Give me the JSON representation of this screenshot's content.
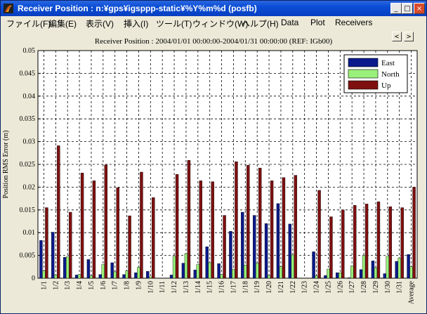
{
  "window": {
    "title": "Receiver Position : n:¥gps¥igsppp-static¥%Y%m%d (posfb)",
    "buttons": {
      "minimize": "_",
      "maximize": "□",
      "close": "×"
    }
  },
  "menu": {
    "items": [
      "ファイル(F)",
      "編集(E)",
      "表示(V)",
      "挿入(I)",
      "ツール(T)",
      "ウィンドウ(W)",
      "ヘルプ(H)",
      "Data",
      "Plot",
      "Receivers"
    ]
  },
  "nav": {
    "prev": "<",
    "next": ">"
  },
  "colors": {
    "east": "#0a1a8c",
    "north": "#99f07a",
    "up": "#7f1010"
  },
  "chart_data": {
    "type": "bar",
    "title": "Receiver Position : 2004/01/01 00:00:00-2004/01/31 00:00:00 (REF: IGb00)",
    "xlabel": "",
    "ylabel": "Position RMS Error (m)",
    "ylim": [
      0,
      0.05
    ],
    "yticks": [
      "0",
      "0.005",
      "0.01",
      "0.015",
      "0.02",
      "0.025",
      "0.03",
      "0.035",
      "0.04",
      "0.045",
      "0.05"
    ],
    "grid": true,
    "legend_position": "top-right",
    "categories": [
      "1/1",
      "1/2",
      "1/3",
      "1/4",
      "1/5",
      "1/6",
      "1/7",
      "1/8",
      "1/9",
      "1/10",
      "1/11",
      "1/12",
      "1/13",
      "1/14",
      "1/15",
      "1/16",
      "1/17",
      "1/18",
      "1/19",
      "1/20",
      "1/21",
      "1/22",
      "1/23",
      "1/24",
      "1/25",
      "1/26",
      "1/27",
      "1/28",
      "1/29",
      "1/30",
      "1/31",
      "Average"
    ],
    "series": [
      {
        "name": "East",
        "values": [
          0.0083,
          0.0101,
          0.0046,
          0.0007,
          0.0041,
          0.0008,
          0.0034,
          0.0008,
          0.0012,
          0.0015,
          0,
          0.0007,
          0.0033,
          0.0018,
          0.0069,
          0.0032,
          0.0103,
          0.0145,
          0.0138,
          0.012,
          0.0164,
          0.0119,
          0,
          0.0058,
          0.0006,
          0.0012,
          0.0001,
          0.0019,
          0.0038,
          0.001,
          0.0037,
          0.0052
        ]
      },
      {
        "name": "North",
        "values": [
          0.0016,
          0.0007,
          0.0047,
          0.0008,
          0.0005,
          0.003,
          0.0014,
          0.0016,
          0.0024,
          0.0003,
          0,
          0.0048,
          0.0054,
          0.003,
          0.0034,
          0.0008,
          0.0019,
          0.0029,
          0.0033,
          0.0006,
          0.0025,
          0.0051,
          0,
          0.0005,
          0.002,
          0.0012,
          0.0027,
          0.005,
          0.0023,
          0.0048,
          0.0044,
          0.0025
        ]
      },
      {
        "name": "Up",
        "values": [
          0.0155,
          0.0291,
          0.0145,
          0.0231,
          0.0214,
          0.0249,
          0.0199,
          0.0137,
          0.0233,
          0.0177,
          0,
          0.0228,
          0.0259,
          0.0214,
          0.0212,
          0.0138,
          0.0256,
          0.0248,
          0.0242,
          0.0214,
          0.0221,
          0.0226,
          0,
          0.0193,
          0.0135,
          0.015,
          0.016,
          0.0163,
          0.0168,
          0.0157,
          0.0155,
          0.02
        ]
      }
    ]
  }
}
